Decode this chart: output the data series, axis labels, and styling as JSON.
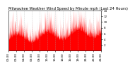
{
  "title": "Milwaukee Weather Wind Speed by Minute mph (Last 24 Hours)",
  "background_color": "#ffffff",
  "plot_bg_color": "#ffffff",
  "line_color": "#ff0000",
  "fill_color": "#ff0000",
  "grid_color": "#aaaaaa",
  "ylim": [
    0,
    14
  ],
  "yticks": [
    2,
    4,
    6,
    8,
    10,
    12,
    14
  ],
  "n_points": 1440,
  "title_fontsize": 3.8,
  "tick_fontsize": 3.0,
  "num_xticks": 13
}
